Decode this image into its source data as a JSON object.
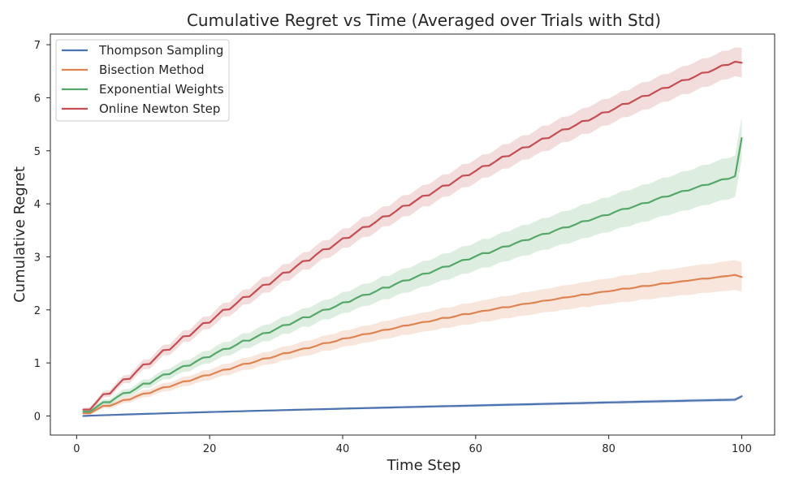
{
  "chart_data": {
    "type": "line",
    "title": "Cumulative Regret vs Time (Averaged over Trials with Std)",
    "xlabel": "Time Step",
    "ylabel": "Cumulative Regret",
    "xlim": [
      -3.95,
      104.95
    ],
    "ylim": [
      -0.36,
      7.2
    ],
    "xticks": [
      0,
      20,
      40,
      60,
      80,
      100
    ],
    "yticks": [
      0,
      1,
      2,
      3,
      4,
      5,
      6,
      7
    ],
    "grid": false,
    "legend_position": "top-left",
    "x": [
      1,
      2,
      3,
      4,
      5,
      6,
      7,
      8,
      9,
      10,
      11,
      12,
      13,
      14,
      15,
      16,
      17,
      18,
      19,
      20,
      21,
      22,
      23,
      24,
      25,
      26,
      27,
      28,
      29,
      30,
      31,
      32,
      33,
      34,
      35,
      36,
      37,
      38,
      39,
      40,
      41,
      42,
      43,
      44,
      45,
      46,
      47,
      48,
      49,
      50,
      51,
      52,
      53,
      54,
      55,
      56,
      57,
      58,
      59,
      60,
      61,
      62,
      63,
      64,
      65,
      66,
      67,
      68,
      69,
      70,
      71,
      72,
      73,
      74,
      75,
      76,
      77,
      78,
      79,
      80,
      81,
      82,
      83,
      84,
      85,
      86,
      87,
      88,
      89,
      90,
      91,
      92,
      93,
      94,
      95,
      96,
      97,
      98,
      99,
      100
    ],
    "series": [
      {
        "name": "Thompson Sampling",
        "color": "#4c72b0",
        "mean": [
          0.0,
          0.005,
          0.01,
          0.014,
          0.018,
          0.022,
          0.026,
          0.03,
          0.034,
          0.038,
          0.042,
          0.045,
          0.049,
          0.053,
          0.056,
          0.06,
          0.063,
          0.067,
          0.07,
          0.074,
          0.077,
          0.08,
          0.084,
          0.087,
          0.09,
          0.094,
          0.097,
          0.1,
          0.103,
          0.106,
          0.11,
          0.113,
          0.116,
          0.119,
          0.122,
          0.125,
          0.128,
          0.131,
          0.134,
          0.138,
          0.141,
          0.144,
          0.147,
          0.15,
          0.153,
          0.156,
          0.159,
          0.162,
          0.165,
          0.168,
          0.171,
          0.174,
          0.177,
          0.18,
          0.183,
          0.186,
          0.188,
          0.191,
          0.194,
          0.197,
          0.2,
          0.203,
          0.206,
          0.209,
          0.212,
          0.215,
          0.218,
          0.22,
          0.223,
          0.226,
          0.229,
          0.232,
          0.235,
          0.238,
          0.24,
          0.243,
          0.246,
          0.249,
          0.252,
          0.255,
          0.257,
          0.26,
          0.263,
          0.266,
          0.269,
          0.271,
          0.274,
          0.277,
          0.28,
          0.282,
          0.285,
          0.288,
          0.291,
          0.293,
          0.296,
          0.299,
          0.302,
          0.304,
          0.307,
          0.37
        ],
        "std": [
          0.0,
          0.002,
          0.003,
          0.004,
          0.005,
          0.006,
          0.007,
          0.007,
          0.008,
          0.009,
          0.009,
          0.01,
          0.01,
          0.011,
          0.011,
          0.012,
          0.012,
          0.013,
          0.013,
          0.014,
          0.014,
          0.014,
          0.015,
          0.015,
          0.016,
          0.016,
          0.016,
          0.017,
          0.017,
          0.017,
          0.018,
          0.018,
          0.018,
          0.019,
          0.019,
          0.019,
          0.02,
          0.02,
          0.02,
          0.021,
          0.021,
          0.021,
          0.021,
          0.022,
          0.022,
          0.022,
          0.023,
          0.023,
          0.023,
          0.023,
          0.024,
          0.024,
          0.024,
          0.024,
          0.025,
          0.025,
          0.025,
          0.025,
          0.026,
          0.026,
          0.026,
          0.026,
          0.027,
          0.027,
          0.027,
          0.027,
          0.027,
          0.028,
          0.028,
          0.028,
          0.028,
          0.029,
          0.029,
          0.029,
          0.029,
          0.029,
          0.03,
          0.03,
          0.03,
          0.03,
          0.03,
          0.031,
          0.031,
          0.031,
          0.031,
          0.031,
          0.031,
          0.032,
          0.032,
          0.032,
          0.032,
          0.032,
          0.033,
          0.033,
          0.033,
          0.033,
          0.033,
          0.033,
          0.034,
          0.034
        ]
      },
      {
        "name": "Bisection Method",
        "color": "#dd8452",
        "mean": [
          0.05,
          0.05,
          0.12,
          0.19,
          0.19,
          0.24,
          0.3,
          0.31,
          0.37,
          0.42,
          0.43,
          0.49,
          0.54,
          0.55,
          0.6,
          0.65,
          0.66,
          0.71,
          0.76,
          0.77,
          0.82,
          0.87,
          0.88,
          0.93,
          0.98,
          0.99,
          1.03,
          1.08,
          1.09,
          1.13,
          1.18,
          1.19,
          1.23,
          1.27,
          1.28,
          1.32,
          1.37,
          1.38,
          1.41,
          1.46,
          1.47,
          1.5,
          1.54,
          1.55,
          1.58,
          1.62,
          1.63,
          1.66,
          1.7,
          1.71,
          1.74,
          1.77,
          1.78,
          1.81,
          1.85,
          1.85,
          1.88,
          1.92,
          1.92,
          1.95,
          1.98,
          1.99,
          2.02,
          2.05,
          2.05,
          2.08,
          2.11,
          2.12,
          2.14,
          2.17,
          2.18,
          2.2,
          2.23,
          2.24,
          2.26,
          2.29,
          2.29,
          2.32,
          2.34,
          2.35,
          2.37,
          2.4,
          2.4,
          2.42,
          2.45,
          2.45,
          2.47,
          2.5,
          2.5,
          2.52,
          2.54,
          2.55,
          2.57,
          2.59,
          2.59,
          2.61,
          2.63,
          2.64,
          2.66,
          2.62
        ],
        "std": [
          0.02,
          0.03,
          0.04,
          0.04,
          0.05,
          0.05,
          0.06,
          0.06,
          0.06,
          0.07,
          0.07,
          0.07,
          0.08,
          0.08,
          0.08,
          0.09,
          0.09,
          0.09,
          0.1,
          0.1,
          0.1,
          0.11,
          0.11,
          0.11,
          0.11,
          0.12,
          0.12,
          0.12,
          0.12,
          0.13,
          0.13,
          0.13,
          0.13,
          0.14,
          0.14,
          0.14,
          0.14,
          0.15,
          0.15,
          0.15,
          0.15,
          0.16,
          0.16,
          0.16,
          0.16,
          0.17,
          0.17,
          0.17,
          0.17,
          0.18,
          0.18,
          0.18,
          0.18,
          0.19,
          0.19,
          0.19,
          0.19,
          0.2,
          0.2,
          0.2,
          0.2,
          0.21,
          0.21,
          0.21,
          0.21,
          0.21,
          0.22,
          0.22,
          0.22,
          0.22,
          0.22,
          0.23,
          0.23,
          0.23,
          0.23,
          0.23,
          0.24,
          0.24,
          0.24,
          0.24,
          0.24,
          0.25,
          0.25,
          0.25,
          0.25,
          0.25,
          0.26,
          0.26,
          0.26,
          0.26,
          0.26,
          0.27,
          0.27,
          0.27,
          0.27,
          0.27,
          0.28,
          0.28,
          0.28,
          0.28
        ]
      },
      {
        "name": "Exponential Weights",
        "color": "#55a868",
        "mean": [
          0.08,
          0.08,
          0.17,
          0.26,
          0.26,
          0.35,
          0.43,
          0.44,
          0.52,
          0.61,
          0.61,
          0.7,
          0.78,
          0.79,
          0.87,
          0.94,
          0.95,
          1.03,
          1.1,
          1.11,
          1.19,
          1.26,
          1.27,
          1.34,
          1.42,
          1.42,
          1.49,
          1.56,
          1.57,
          1.64,
          1.71,
          1.72,
          1.79,
          1.86,
          1.86,
          1.93,
          2.0,
          2.01,
          2.07,
          2.14,
          2.15,
          2.22,
          2.28,
          2.29,
          2.35,
          2.42,
          2.42,
          2.49,
          2.55,
          2.56,
          2.62,
          2.68,
          2.69,
          2.75,
          2.81,
          2.82,
          2.88,
          2.94,
          2.95,
          3.01,
          3.07,
          3.07,
          3.13,
          3.19,
          3.2,
          3.26,
          3.31,
          3.32,
          3.38,
          3.43,
          3.44,
          3.5,
          3.55,
          3.56,
          3.61,
          3.67,
          3.68,
          3.73,
          3.78,
          3.79,
          3.85,
          3.9,
          3.91,
          3.96,
          4.01,
          4.02,
          4.08,
          4.13,
          4.14,
          4.19,
          4.24,
          4.25,
          4.3,
          4.35,
          4.36,
          4.41,
          4.46,
          4.47,
          4.52,
          5.24
        ],
        "std": [
          0.03,
          0.03,
          0.05,
          0.05,
          0.06,
          0.06,
          0.07,
          0.07,
          0.08,
          0.08,
          0.08,
          0.09,
          0.09,
          0.1,
          0.1,
          0.11,
          0.11,
          0.11,
          0.12,
          0.12,
          0.13,
          0.13,
          0.13,
          0.14,
          0.14,
          0.14,
          0.15,
          0.15,
          0.16,
          0.16,
          0.16,
          0.17,
          0.17,
          0.17,
          0.18,
          0.18,
          0.18,
          0.19,
          0.19,
          0.2,
          0.2,
          0.2,
          0.21,
          0.21,
          0.21,
          0.22,
          0.22,
          0.22,
          0.23,
          0.23,
          0.23,
          0.24,
          0.24,
          0.24,
          0.25,
          0.25,
          0.25,
          0.26,
          0.26,
          0.26,
          0.27,
          0.27,
          0.27,
          0.28,
          0.28,
          0.28,
          0.29,
          0.29,
          0.29,
          0.3,
          0.3,
          0.3,
          0.31,
          0.31,
          0.31,
          0.32,
          0.32,
          0.32,
          0.33,
          0.33,
          0.33,
          0.34,
          0.34,
          0.34,
          0.35,
          0.35,
          0.35,
          0.36,
          0.36,
          0.36,
          0.37,
          0.37,
          0.37,
          0.38,
          0.38,
          0.38,
          0.39,
          0.39,
          0.39,
          0.4
        ]
      },
      {
        "name": "Online Newton Step",
        "color": "#c44e52",
        "mean": [
          0.12,
          0.12,
          0.26,
          0.41,
          0.42,
          0.56,
          0.69,
          0.7,
          0.84,
          0.97,
          0.98,
          1.11,
          1.24,
          1.25,
          1.37,
          1.5,
          1.51,
          1.63,
          1.75,
          1.76,
          1.88,
          2.0,
          2.01,
          2.12,
          2.24,
          2.25,
          2.36,
          2.47,
          2.48,
          2.59,
          2.7,
          2.71,
          2.82,
          2.92,
          2.93,
          3.04,
          3.14,
          3.15,
          3.25,
          3.35,
          3.36,
          3.46,
          3.56,
          3.57,
          3.66,
          3.76,
          3.77,
          3.86,
          3.96,
          3.97,
          4.06,
          4.15,
          4.16,
          4.25,
          4.34,
          4.35,
          4.44,
          4.53,
          4.54,
          4.62,
          4.71,
          4.72,
          4.8,
          4.89,
          4.9,
          4.98,
          5.06,
          5.07,
          5.15,
          5.23,
          5.24,
          5.32,
          5.4,
          5.41,
          5.48,
          5.56,
          5.57,
          5.64,
          5.72,
          5.73,
          5.8,
          5.88,
          5.89,
          5.96,
          6.03,
          6.04,
          6.11,
          6.18,
          6.19,
          6.26,
          6.33,
          6.34,
          6.4,
          6.47,
          6.48,
          6.54,
          6.61,
          6.62,
          6.68,
          6.66
        ],
        "std": [
          0.03,
          0.04,
          0.05,
          0.06,
          0.06,
          0.07,
          0.07,
          0.08,
          0.08,
          0.09,
          0.09,
          0.1,
          0.1,
          0.1,
          0.11,
          0.11,
          0.11,
          0.12,
          0.12,
          0.12,
          0.13,
          0.13,
          0.13,
          0.14,
          0.14,
          0.14,
          0.15,
          0.15,
          0.15,
          0.15,
          0.16,
          0.16,
          0.16,
          0.16,
          0.17,
          0.17,
          0.17,
          0.17,
          0.18,
          0.18,
          0.18,
          0.18,
          0.19,
          0.19,
          0.19,
          0.19,
          0.19,
          0.2,
          0.2,
          0.2,
          0.2,
          0.2,
          0.21,
          0.21,
          0.21,
          0.21,
          0.21,
          0.22,
          0.22,
          0.22,
          0.22,
          0.22,
          0.22,
          0.23,
          0.23,
          0.23,
          0.23,
          0.23,
          0.23,
          0.24,
          0.24,
          0.24,
          0.24,
          0.24,
          0.24,
          0.24,
          0.25,
          0.25,
          0.25,
          0.25,
          0.25,
          0.25,
          0.25,
          0.26,
          0.26,
          0.26,
          0.26,
          0.26,
          0.26,
          0.26,
          0.26,
          0.27,
          0.27,
          0.27,
          0.27,
          0.27,
          0.27,
          0.27,
          0.27,
          0.28
        ]
      }
    ]
  }
}
